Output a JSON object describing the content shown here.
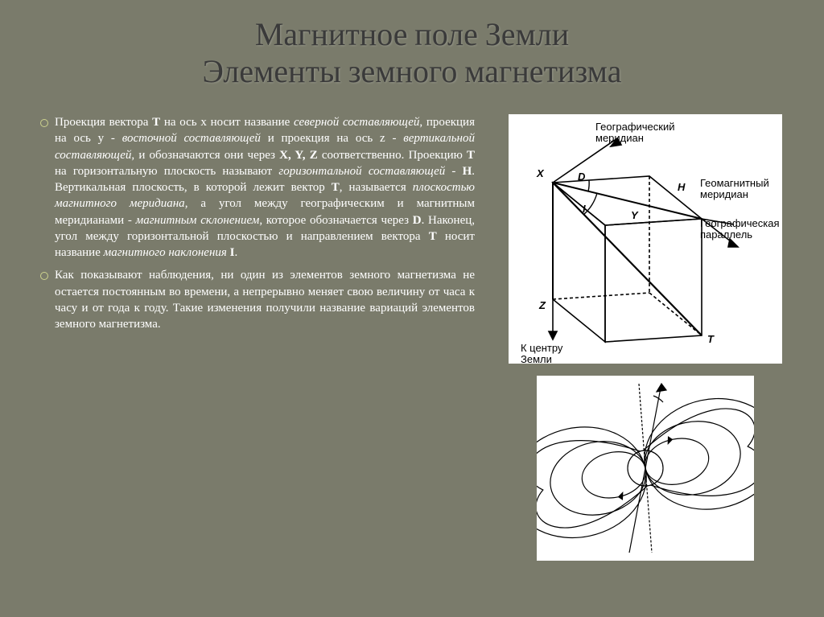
{
  "title_line1": "Магнитное поле Земли",
  "title_line2": "Элементы земного магнетизма",
  "paragraph1_html": "Проекция вектора <b>Т</b> на ось x носит название <i>северной составляющей</i>, проекция на ось y - <i>восточной составляющей</i> и проекция на ось z - <i>вертикальной составляющей</i>, и обозначаются они через <b>X, Y, Z</b> соответственно. Проекцию <b>Т</b> на горизонтальную плоскость называют <i>горизонтальной составляющей</i> - <b>Н</b>. Вертикальная плоскость, в которой лежит вектор <b>Т</b>, называется <i>плоскостью магнитного меридиана</i>, а угол между географическим и магнитным меридианами - <i>магнитным склонением</i>, которое обозначается через <b>D</b>. Наконец, угол между горизонтальной плоскостью и направлением вектора <b>Т</b> носит название <i>магнитного наклонения</i> <b>I</b>.",
  "paragraph2_html": "Как показывают наблюдения, ни один из элементов земного магнетизма не остается постоянным во времени, а непрерывно меняет свою величину от часа к часу и от года к году. Такие изменения получили название вариаций элементов земного магнетизма.",
  "diagram": {
    "labels": {
      "geo_meridian": "Географический\nмеридиан",
      "geomag_meridian": "Геомагнитный\nмеридиан",
      "geo_parallel": "Географическая\nпараллель",
      "to_center": "К центру\nЗемли",
      "X": "X",
      "Y": "Y",
      "Z": "Z",
      "H": "H",
      "T": "T",
      "D": "D",
      "I": "I"
    },
    "colors": {
      "stroke": "#000000",
      "bg": "#ffffff",
      "text": "#000000"
    },
    "line_width": 1.6,
    "font_size": 12
  },
  "field_diagram": {
    "colors": {
      "stroke": "#000000",
      "bg": "#ffffff"
    },
    "line_width": 1.2
  },
  "style": {
    "background": "#7a7b6b",
    "title_color": "#3a3a3a",
    "title_fontsize": 40,
    "body_color": "#ffffff",
    "body_fontsize": 15,
    "bullet_ring_color": "#cdd28e"
  }
}
